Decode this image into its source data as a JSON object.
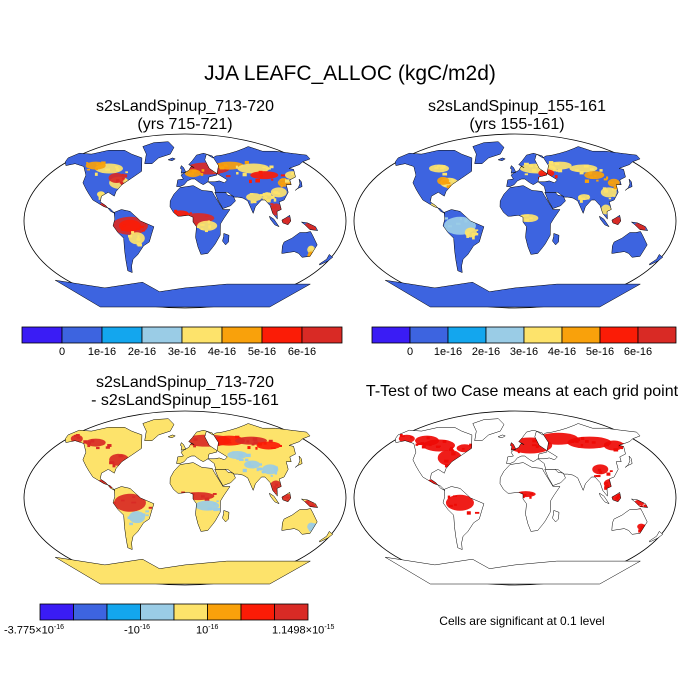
{
  "title": "JJA LEAFC_ALLOC (kgC/m2d)",
  "panels": {
    "top_left": {
      "line1": "s2sLandSpinup_713-720",
      "line2": "(yrs 715-721)"
    },
    "top_right": {
      "line1": "s2sLandSpinup_155-161",
      "line2": "(yrs 155-161)"
    },
    "bottom_left": {
      "line1": "s2sLandSpinup_713-720",
      "line2": "- s2sLandSpinup_155-161"
    },
    "bottom_right": {
      "line1": "T-Test of two Case means at each grid point"
    }
  },
  "colorbar_main": {
    "colors": [
      "#3a1cf5",
      "#3d64e0",
      "#13a6ee",
      "#9acce6",
      "#fde36b",
      "#f9a10b",
      "#fb1c06",
      "#d92a25"
    ],
    "labels": [
      "0",
      "1e-16",
      "2e-16",
      "3e-16",
      "4e-16",
      "5e-16",
      "6e-16"
    ]
  },
  "colorbar_diff": {
    "colors": [
      "#3a1cf5",
      "#3d64e0",
      "#13a6ee",
      "#9acce6",
      "#fde36b",
      "#f9a10b",
      "#fb1c06",
      "#d92a25"
    ],
    "min_label": "-3.775×10",
    "min_exp": "-16",
    "neg_label": "-10",
    "neg_exp": "-16",
    "pos_label": "10",
    "pos_exp": "-16",
    "max_label": "1.1498×10",
    "max_exp": "-15"
  },
  "significance_note": "Cells are significant at 0.1 level",
  "map_colors": {
    "ocean": "#ffffff",
    "land_base": "#3d64e0",
    "high": "#fb1c06",
    "mid": "#fde36b",
    "light": "#9acce6",
    "orange": "#f9a10b",
    "dark_red": "#d92a25",
    "sig": "#ee0a05"
  }
}
